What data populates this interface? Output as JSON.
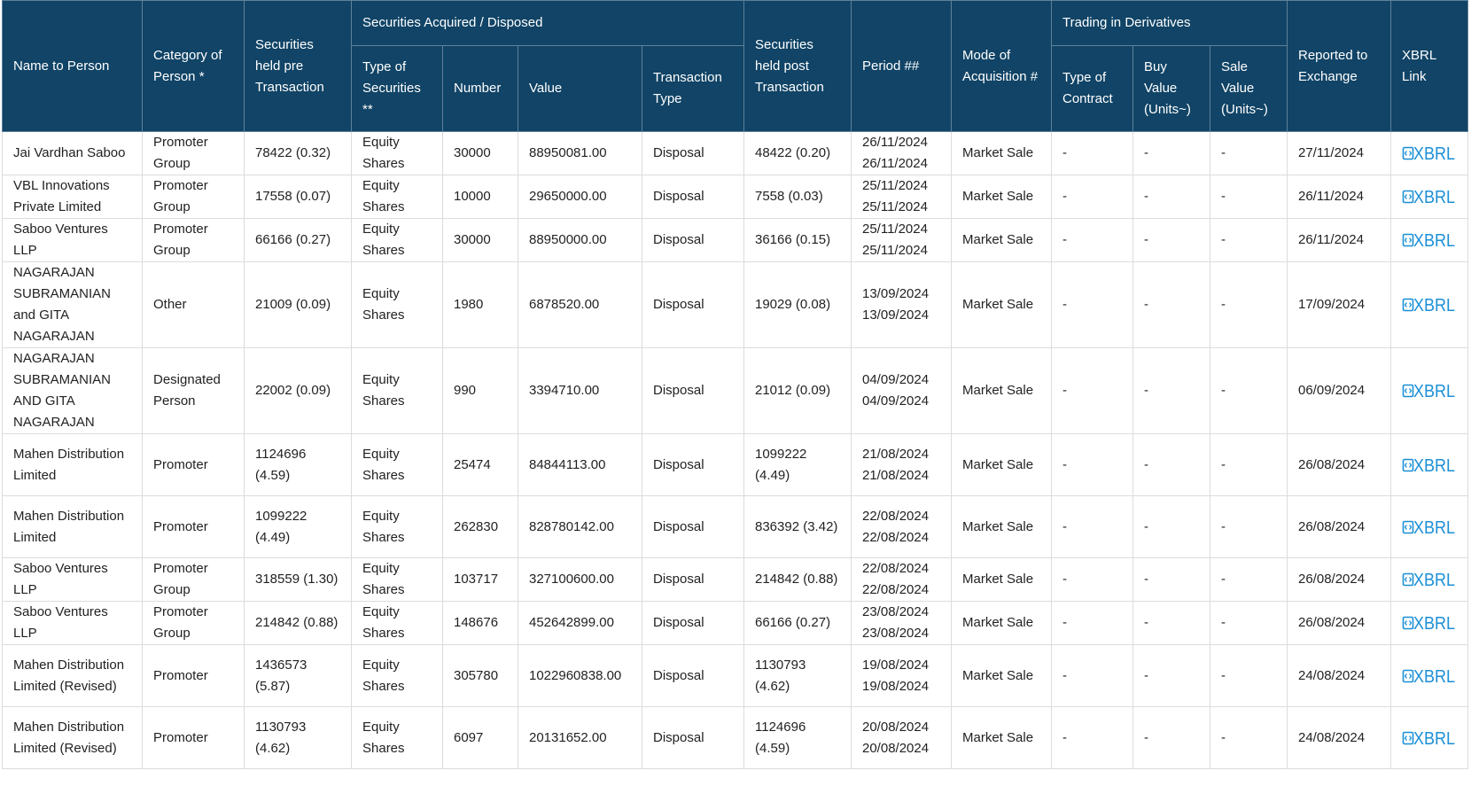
{
  "header": {
    "name": "Name to Person",
    "category": "Category of Person *",
    "held_pre": "Securities held pre Transaction",
    "acq_group": "Securities Acquired / Disposed",
    "type_sec": "Type of Securities **",
    "number": "Number",
    "value": "Value",
    "trans_type": "Transaction Type",
    "held_post": "Securities held post Transaction",
    "period": "Period ##",
    "mode": "Mode of Acquisition #",
    "deriv_group": "Trading in Derivatives",
    "contract": "Type of Contract",
    "buy_value": "Buy Value (Units~)",
    "sale_value": "Sale Value (Units~)",
    "reported": "Reported to Exchange",
    "xbrl": "XBRL Link"
  },
  "xbrl_icon": {
    "icon": "xbrl-icon",
    "label": "XBRL",
    "color": "#1a8fd6"
  },
  "rows": [
    {
      "name": "Jai Vardhan Saboo",
      "category": "Promoter Group",
      "pre": "78422 (0.32)",
      "type": "Equity Shares",
      "number": "30000",
      "value": "88950081.00",
      "trans": "Disposal",
      "post": "48422 (0.20)",
      "period_from": "26/11/2024",
      "period_to": "26/11/2024",
      "mode": "Market Sale",
      "contract": "-",
      "buy": "-",
      "sale": "-",
      "reported": "27/11/2024"
    },
    {
      "name": "VBL Innovations Private Limited",
      "category": "Promoter Group",
      "pre": "17558 (0.07)",
      "type": "Equity Shares",
      "number": "10000",
      "value": "29650000.00",
      "trans": "Disposal",
      "post": "7558 (0.03)",
      "period_from": "25/11/2024",
      "period_to": "25/11/2024",
      "mode": "Market Sale",
      "contract": "-",
      "buy": "-",
      "sale": "-",
      "reported": "26/11/2024"
    },
    {
      "name": "Saboo Ventures LLP",
      "category": "Promoter Group",
      "pre": "66166 (0.27)",
      "type": "Equity Shares",
      "number": "30000",
      "value": "88950000.00",
      "trans": "Disposal",
      "post": "36166 (0.15)",
      "period_from": "25/11/2024",
      "period_to": "25/11/2024",
      "mode": "Market Sale",
      "contract": "-",
      "buy": "-",
      "sale": "-",
      "reported": "26/11/2024"
    },
    {
      "name": "NAGARAJAN SUBRAMANIAN and GITA NAGARAJAN",
      "category": "Other",
      "pre": "21009 (0.09)",
      "type": "Equity Shares",
      "number": "1980",
      "value": "6878520.00",
      "trans": "Disposal",
      "post": "19029 (0.08)",
      "period_from": "13/09/2024",
      "period_to": "13/09/2024",
      "mode": "Market Sale",
      "contract": "-",
      "buy": "-",
      "sale": "-",
      "reported": "17/09/2024"
    },
    {
      "name": "NAGARAJAN SUBRAMANIAN AND GITA NAGARAJAN",
      "category": "Designated Person",
      "pre": "22002 (0.09)",
      "type": "Equity Shares",
      "number": "990",
      "value": "3394710.00",
      "trans": "Disposal",
      "post": "21012 (0.09)",
      "period_from": "04/09/2024",
      "period_to": "04/09/2024",
      "mode": "Market Sale",
      "contract": "-",
      "buy": "-",
      "sale": "-",
      "reported": "06/09/2024"
    },
    {
      "name": "Mahen Distribution Limited",
      "category": "Promoter",
      "pre": "1124696 (4.59)",
      "type": "Equity Shares",
      "number": "25474",
      "value": "84844113.00",
      "trans": "Disposal",
      "post": "1099222 (4.49)",
      "period_from": "21/08/2024",
      "period_to": "21/08/2024",
      "mode": "Market Sale",
      "contract": "-",
      "buy": "-",
      "sale": "-",
      "reported": "26/08/2024"
    },
    {
      "name": "Mahen Distribution Limited",
      "category": "Promoter",
      "pre": "1099222 (4.49)",
      "type": "Equity Shares",
      "number": "262830",
      "value": "828780142.00",
      "trans": "Disposal",
      "post": "836392 (3.42)",
      "period_from": "22/08/2024",
      "period_to": "22/08/2024",
      "mode": "Market Sale",
      "contract": "-",
      "buy": "-",
      "sale": "-",
      "reported": "26/08/2024"
    },
    {
      "name": "Saboo Ventures LLP",
      "category": "Promoter Group",
      "pre": "318559 (1.30)",
      "type": "Equity Shares",
      "number": "103717",
      "value": "327100600.00",
      "trans": "Disposal",
      "post": "214842 (0.88)",
      "period_from": "22/08/2024",
      "period_to": "22/08/2024",
      "mode": "Market Sale",
      "contract": "-",
      "buy": "-",
      "sale": "-",
      "reported": "26/08/2024"
    },
    {
      "name": "Saboo Ventures LLP",
      "category": "Promoter Group",
      "pre": "214842 (0.88)",
      "type": "Equity Shares",
      "number": "148676",
      "value": "452642899.00",
      "trans": "Disposal",
      "post": "66166 (0.27)",
      "period_from": "23/08/2024",
      "period_to": "23/08/2024",
      "mode": "Market Sale",
      "contract": "-",
      "buy": "-",
      "sale": "-",
      "reported": "26/08/2024"
    },
    {
      "name": "Mahen Distribution Limited (Revised)",
      "category": "Promoter",
      "pre": "1436573 (5.87)",
      "type": "Equity Shares",
      "number": "305780",
      "value": "1022960838.00",
      "trans": "Disposal",
      "post": "1130793 (4.62)",
      "period_from": "19/08/2024",
      "period_to": "19/08/2024",
      "mode": "Market Sale",
      "contract": "-",
      "buy": "-",
      "sale": "-",
      "reported": "24/08/2024"
    },
    {
      "name": "Mahen Distribution Limited (Revised)",
      "category": "Promoter",
      "pre": "1130793 (4.62)",
      "type": "Equity Shares",
      "number": "6097",
      "value": "20131652.00",
      "trans": "Disposal",
      "post": "1124696 (4.59)",
      "period_from": "20/08/2024",
      "period_to": "20/08/2024",
      "mode": "Market Sale",
      "contract": "-",
      "buy": "-",
      "sale": "-",
      "reported": "24/08/2024"
    }
  ]
}
